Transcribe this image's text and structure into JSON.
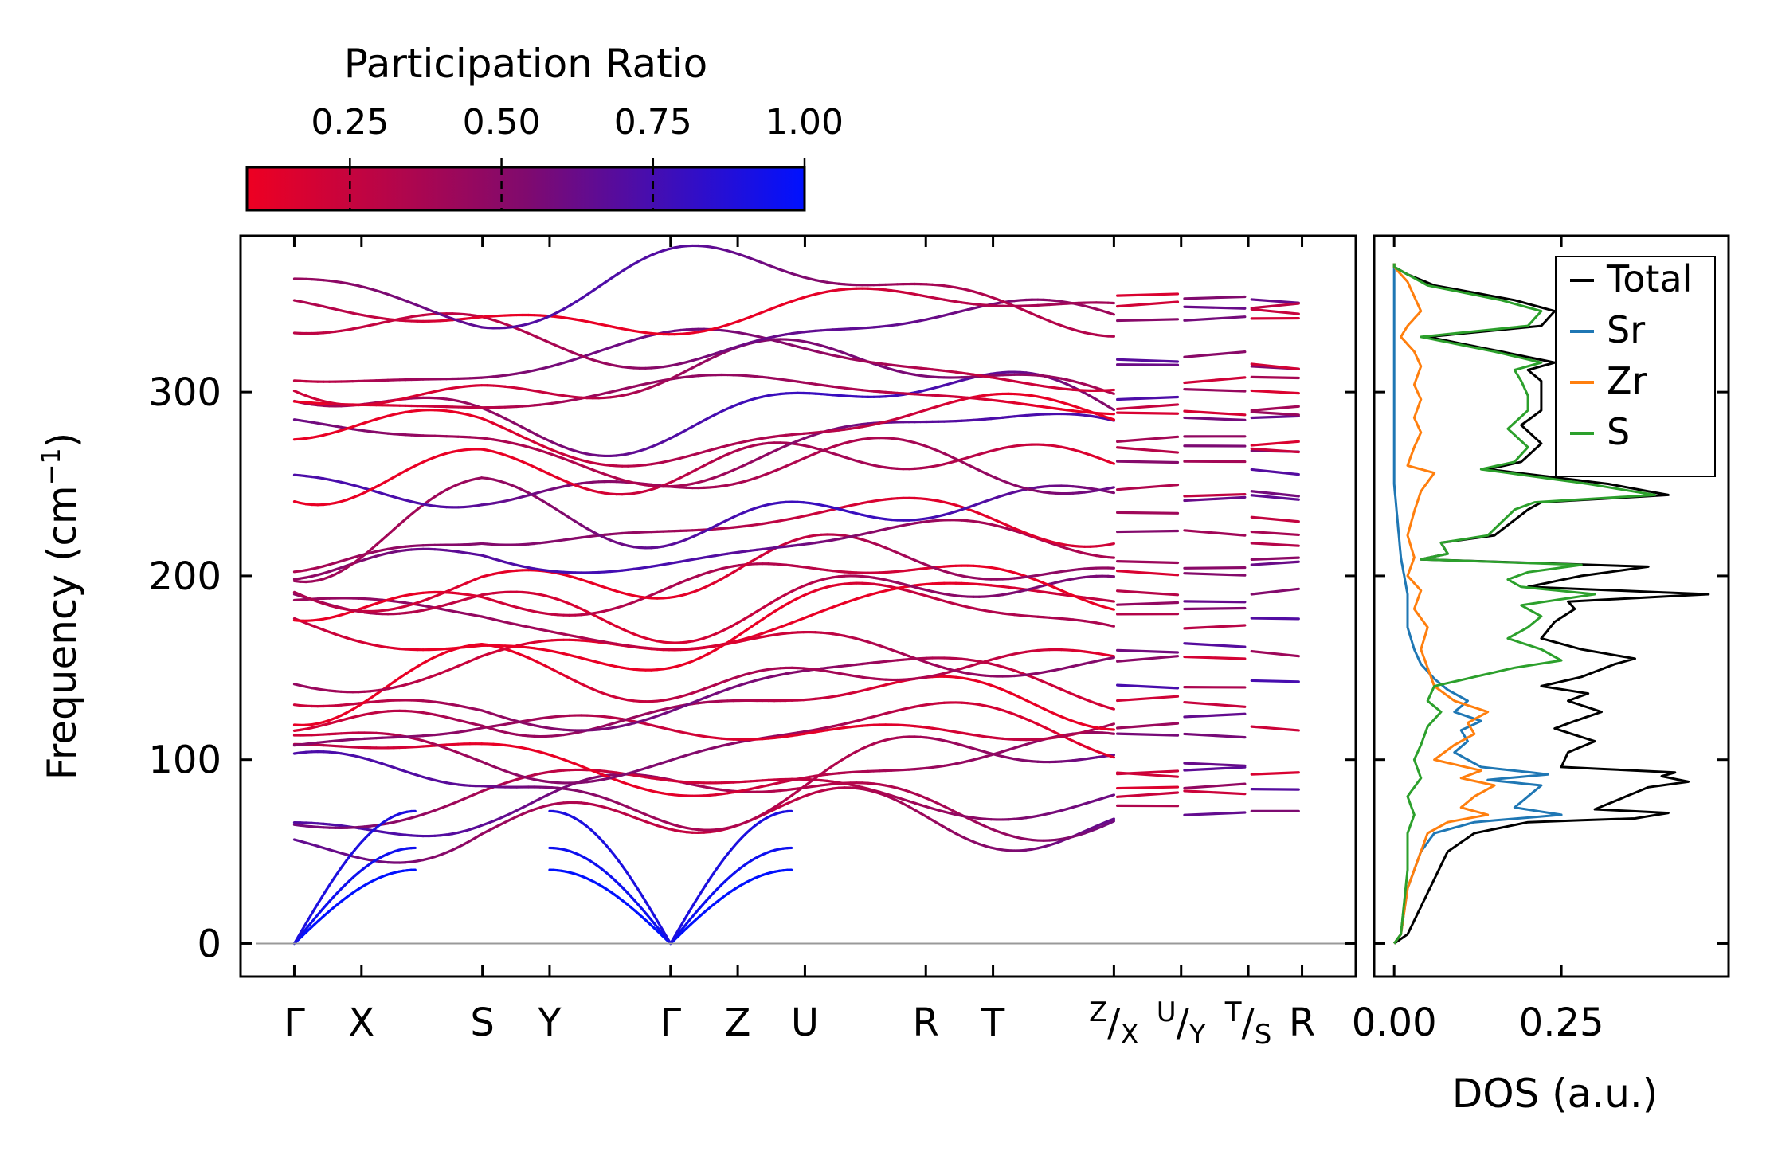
{
  "chart_data": [
    {
      "type": "line",
      "title": "",
      "xlabel": "",
      "ylabel": "Frequency (cm⁻¹)",
      "ylabel_main": "Frequency (cm",
      "ylabel_sup": "−1",
      "ylabel_close": ")",
      "ylim": [
        -18,
        385
      ],
      "yticks": [
        0,
        100,
        200,
        300
      ],
      "ytick_labels": [
        "0",
        "100",
        "200",
        "300"
      ],
      "kpath": {
        "labels": [
          "Γ",
          "X",
          "S",
          "Y",
          "Γ",
          "Z",
          "U",
          "R",
          "T",
          "R"
        ],
        "positions": [
          0,
          0.2,
          0.56,
          0.76,
          1.12,
          1.32,
          1.52,
          1.88,
          2.08,
          3.0
        ],
        "breaks": [
          2.44,
          2.64,
          2.84
        ],
        "break_labels": [
          {
            "pre": "Z",
            "post": "X"
          },
          {
            "pre": "U",
            "post": "Y"
          },
          {
            "pre": "T",
            "post": "S"
          }
        ],
        "xlim": [
          -0.16,
          3.16
        ]
      },
      "colorbar": {
        "label": "Participation Ratio",
        "range": [
          0.08,
          1.0
        ],
        "ticks": [
          0.25,
          0.5,
          0.75,
          1.0
        ],
        "tick_labels": [
          "0.25",
          "0.50",
          "0.75",
          "1.00"
        ],
        "low_color": "#ee0022",
        "mid_color": "#800a6e",
        "high_color": "#0011ff"
      },
      "zero_line_color": "#999999",
      "acoustic_branches": {
        "gamma_zero": 0,
        "x_values": [
          0,
          2,
          14
        ],
        "comment": "three acoustic branches reaching 0 at Γ"
      },
      "band_levels_gamma": [
        56,
        72,
        76,
        80,
        98,
        104,
        110,
        118,
        126,
        130,
        150,
        162,
        172,
        178,
        184,
        190,
        200,
        208,
        212,
        246,
        250,
        268,
        270,
        288,
        300,
        306,
        318,
        326,
        340,
        366
      ],
      "band_levels_mid": [
        72,
        80,
        86,
        94,
        96,
        112,
        120,
        134,
        142,
        156,
        162,
        176,
        182,
        190,
        200,
        208,
        222,
        236,
        246,
        258,
        266,
        274,
        284,
        292,
        298,
        310,
        316,
        336,
        346,
        350
      ],
      "band_levels_R": [
        72,
        84,
        92,
        118,
        143,
        159,
        177,
        190,
        206,
        224,
        246,
        271,
        290,
        314,
        345
      ]
    },
    {
      "type": "line",
      "title": "",
      "xlabel": "DOS (a.u.)",
      "ylabel": "",
      "xlim": [
        -0.03,
        0.5
      ],
      "xticks": [
        0.0,
        0.25
      ],
      "xtick_labels": [
        "0.00",
        "0.25"
      ],
      "ylim": [
        -18,
        385
      ],
      "legend_position": "top-right",
      "series": [
        {
          "name": "Total",
          "color": "#000000",
          "peaks": [
            [
              5,
              0.02
            ],
            [
              20,
              0.04
            ],
            [
              35,
              0.06
            ],
            [
              50,
              0.08
            ],
            [
              60,
              0.12
            ],
            [
              66,
              0.2
            ],
            [
              68,
              0.36
            ],
            [
              71,
              0.41
            ],
            [
              73,
              0.3
            ],
            [
              82,
              0.36
            ],
            [
              85,
              0.38
            ],
            [
              88,
              0.44
            ],
            [
              91,
              0.4
            ],
            [
              93,
              0.42
            ],
            [
              96,
              0.25
            ],
            [
              104,
              0.26
            ],
            [
              110,
              0.3
            ],
            [
              117,
              0.24
            ],
            [
              121,
              0.27
            ],
            [
              126,
              0.31
            ],
            [
              132,
              0.26
            ],
            [
              136,
              0.29
            ],
            [
              140,
              0.22
            ],
            [
              145,
              0.28
            ],
            [
              152,
              0.33
            ],
            [
              155,
              0.36
            ],
            [
              160,
              0.28
            ],
            [
              166,
              0.22
            ],
            [
              175,
              0.24
            ],
            [
              182,
              0.27
            ],
            [
              186,
              0.26
            ],
            [
              190,
              0.47
            ],
            [
              194,
              0.2
            ],
            [
              200,
              0.28
            ],
            [
              205,
              0.38
            ],
            [
              209,
              0.04
            ],
            [
              212,
              0.08
            ],
            [
              218,
              0.07
            ],
            [
              222,
              0.15
            ],
            [
              236,
              0.2
            ],
            [
              240,
              0.22
            ],
            [
              244,
              0.41
            ],
            [
              250,
              0.32
            ],
            [
              258,
              0.14
            ],
            [
              262,
              0.19
            ],
            [
              272,
              0.22
            ],
            [
              282,
              0.19
            ],
            [
              290,
              0.22
            ],
            [
              298,
              0.22
            ],
            [
              306,
              0.22
            ],
            [
              312,
              0.2
            ],
            [
              316,
              0.24
            ],
            [
              322,
              0.16
            ],
            [
              330,
              0.05
            ],
            [
              336,
              0.22
            ],
            [
              344,
              0.24
            ],
            [
              350,
              0.18
            ],
            [
              358,
              0.06
            ],
            [
              364,
              0.02
            ],
            [
              368,
              0.0
            ]
          ]
        },
        {
          "name": "Sr",
          "color": "#1f77b4",
          "peaks": [
            [
              5,
              0.01
            ],
            [
              30,
              0.02
            ],
            [
              50,
              0.04
            ],
            [
              60,
              0.06
            ],
            [
              66,
              0.12
            ],
            [
              70,
              0.25
            ],
            [
              74,
              0.18
            ],
            [
              80,
              0.2
            ],
            [
              86,
              0.22
            ],
            [
              89,
              0.14
            ],
            [
              92,
              0.23
            ],
            [
              96,
              0.13
            ],
            [
              104,
              0.09
            ],
            [
              110,
              0.11
            ],
            [
              116,
              0.1
            ],
            [
              121,
              0.13
            ],
            [
              126,
              0.09
            ],
            [
              132,
              0.11
            ],
            [
              138,
              0.08
            ],
            [
              144,
              0.06
            ],
            [
              152,
              0.04
            ],
            [
              160,
              0.03
            ],
            [
              172,
              0.02
            ],
            [
              190,
              0.02
            ],
            [
              210,
              0.01
            ],
            [
              250,
              0.0
            ],
            [
              300,
              0.0
            ],
            [
              368,
              0.0
            ]
          ]
        },
        {
          "name": "Zr",
          "color": "#ff7f0e",
          "peaks": [
            [
              5,
              0.01
            ],
            [
              30,
              0.02
            ],
            [
              50,
              0.04
            ],
            [
              60,
              0.05
            ],
            [
              66,
              0.08
            ],
            [
              70,
              0.14
            ],
            [
              74,
              0.1
            ],
            [
              80,
              0.12
            ],
            [
              86,
              0.15
            ],
            [
              90,
              0.1
            ],
            [
              94,
              0.13
            ],
            [
              100,
              0.06
            ],
            [
              108,
              0.09
            ],
            [
              114,
              0.12
            ],
            [
              120,
              0.11
            ],
            [
              126,
              0.14
            ],
            [
              132,
              0.09
            ],
            [
              140,
              0.06
            ],
            [
              150,
              0.05
            ],
            [
              160,
              0.04
            ],
            [
              172,
              0.05
            ],
            [
              182,
              0.03
            ],
            [
              192,
              0.04
            ],
            [
              200,
              0.02
            ],
            [
              210,
              0.03
            ],
            [
              222,
              0.02
            ],
            [
              235,
              0.03
            ],
            [
              246,
              0.04
            ],
            [
              256,
              0.06
            ],
            [
              260,
              0.02
            ],
            [
              270,
              0.03
            ],
            [
              278,
              0.04
            ],
            [
              286,
              0.03
            ],
            [
              296,
              0.04
            ],
            [
              304,
              0.03
            ],
            [
              314,
              0.04
            ],
            [
              322,
              0.03
            ],
            [
              330,
              0.01
            ],
            [
              336,
              0.02
            ],
            [
              344,
              0.04
            ],
            [
              352,
              0.03
            ],
            [
              360,
              0.02
            ],
            [
              368,
              0.0
            ]
          ]
        },
        {
          "name": "S",
          "color": "#2ca02c",
          "peaks": [
            [
              5,
              0.01
            ],
            [
              40,
              0.02
            ],
            [
              60,
              0.02
            ],
            [
              70,
              0.03
            ],
            [
              80,
              0.02
            ],
            [
              90,
              0.04
            ],
            [
              100,
              0.03
            ],
            [
              108,
              0.04
            ],
            [
              118,
              0.05
            ],
            [
              126,
              0.07
            ],
            [
              132,
              0.05
            ],
            [
              140,
              0.06
            ],
            [
              150,
              0.18
            ],
            [
              154,
              0.25
            ],
            [
              160,
              0.22
            ],
            [
              166,
              0.17
            ],
            [
              172,
              0.2
            ],
            [
              178,
              0.22
            ],
            [
              184,
              0.19
            ],
            [
              190,
              0.3
            ],
            [
              194,
              0.19
            ],
            [
              198,
              0.17
            ],
            [
              202,
              0.2
            ],
            [
              206,
              0.28
            ],
            [
              209,
              0.04
            ],
            [
              212,
              0.08
            ],
            [
              218,
              0.07
            ],
            [
              222,
              0.14
            ],
            [
              236,
              0.18
            ],
            [
              240,
              0.21
            ],
            [
              244,
              0.39
            ],
            [
              250,
              0.29
            ],
            [
              258,
              0.13
            ],
            [
              262,
              0.18
            ],
            [
              270,
              0.2
            ],
            [
              280,
              0.17
            ],
            [
              290,
              0.2
            ],
            [
              298,
              0.2
            ],
            [
              306,
              0.19
            ],
            [
              312,
              0.18
            ],
            [
              316,
              0.22
            ],
            [
              322,
              0.15
            ],
            [
              330,
              0.04
            ],
            [
              336,
              0.2
            ],
            [
              344,
              0.22
            ],
            [
              350,
              0.16
            ],
            [
              358,
              0.05
            ],
            [
              364,
              0.02
            ],
            [
              368,
              0.0
            ]
          ]
        }
      ]
    }
  ]
}
